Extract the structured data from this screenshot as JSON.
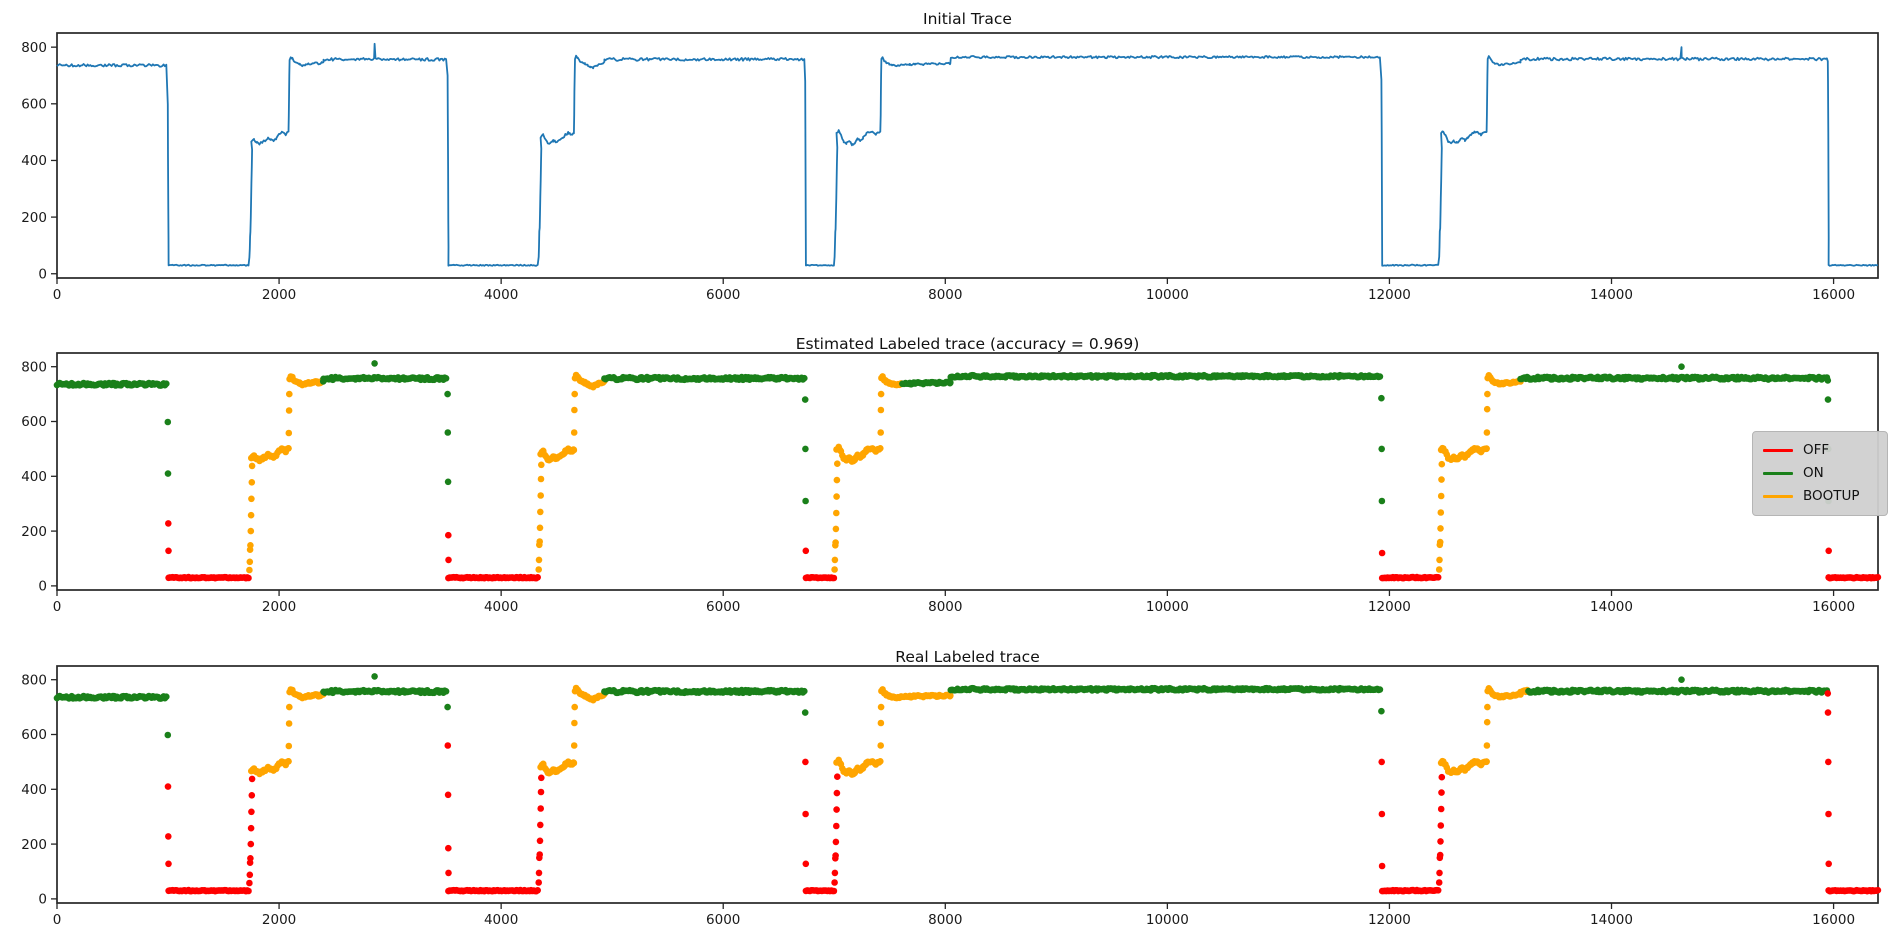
{
  "figure_title": "",
  "legend": {
    "entries": [
      "OFF",
      "ON",
      "BOOTUP"
    ]
  },
  "chart_data": {
    "type": "line",
    "xlim": [
      0,
      16400
    ],
    "ylim": [
      -15,
      850
    ],
    "xticks": [
      0,
      2000,
      4000,
      6000,
      8000,
      10000,
      12000,
      14000,
      16000
    ],
    "yticks": [
      0,
      200,
      400,
      600,
      800
    ],
    "line_color": "#1f77b4",
    "label_colors": {
      "OFF": "#ff0000",
      "ON": "#1a801a",
      "BOOTUP": "#ffa500"
    },
    "panels": [
      {
        "title": "Initial Trace",
        "type": "line"
      },
      {
        "title": "Estimated Labeled trace (accuracy = 0.969)",
        "type": "scatter",
        "labels_key": "est",
        "legend_entries": [
          "OFF",
          "ON",
          "BOOTUP"
        ],
        "legend_position": "center right"
      },
      {
        "title": "Real Labeled trace",
        "type": "scatter",
        "labels_key": "real"
      }
    ],
    "segments": [
      {
        "k": "flat",
        "x0": 0,
        "x1": 995,
        "v": 736,
        "amp": 5,
        "est": "ON",
        "real": "ON"
      },
      {
        "k": "col",
        "x": 998,
        "dx": 2,
        "vals": [
          598,
          410,
          228,
          128
        ],
        "est": [
          "ON",
          "ON",
          "OFF",
          "OFF"
        ],
        "real": [
          "ON",
          "OFF",
          "OFF",
          "OFF"
        ]
      },
      {
        "k": "flat",
        "x0": 1005,
        "x1": 1730,
        "v": 30,
        "amp": 2,
        "est": "OFF",
        "real": "OFF"
      },
      {
        "k": "col",
        "x": 1733,
        "dx": 3,
        "vals": [
          58,
          88,
          132,
          148,
          200,
          258,
          318,
          378,
          438
        ],
        "est": "BOOTUP",
        "real": "OFF"
      },
      {
        "k": "path",
        "pts": [
          [
            1750,
            468
          ],
          [
            1775,
            474
          ],
          [
            1800,
            462
          ],
          [
            1825,
            459
          ],
          [
            1850,
            466
          ],
          [
            1875,
            471
          ],
          [
            1900,
            480
          ],
          [
            1925,
            474
          ],
          [
            1950,
            470
          ],
          [
            1975,
            479
          ],
          [
            2000,
            492
          ],
          [
            2025,
            500
          ],
          [
            2045,
            497
          ],
          [
            2060,
            492
          ],
          [
            2085,
            502
          ]
        ],
        "amp": 4,
        "est": "BOOTUP",
        "real": "BOOTUP"
      },
      {
        "k": "col",
        "x": 2088,
        "dx": 2,
        "vals": [
          558,
          640,
          700
        ],
        "est": "BOOTUP",
        "real": "BOOTUP"
      },
      {
        "k": "path",
        "pts": [
          [
            2095,
            755
          ],
          [
            2105,
            766
          ],
          [
            2120,
            760
          ],
          [
            2140,
            748
          ],
          [
            2160,
            744
          ],
          [
            2185,
            740
          ],
          [
            2210,
            735
          ],
          [
            2240,
            738
          ],
          [
            2270,
            742
          ],
          [
            2300,
            740
          ],
          [
            2330,
            744
          ],
          [
            2360,
            742
          ],
          [
            2385,
            745
          ],
          [
            2400,
            748
          ]
        ],
        "amp": 3,
        "est": [
          [
            "BOOTUP",
            2385
          ],
          [
            "ON",
            2400
          ]
        ],
        "real": "BOOTUP"
      },
      {
        "k": "flat",
        "x0": 2400,
        "x1": 3515,
        "v": 757,
        "amp": 5,
        "spikes": [
          [
            2860,
            812
          ]
        ],
        "est": "ON",
        "real": "ON"
      },
      {
        "k": "col",
        "x": 3518,
        "dx": 2,
        "vals": [
          700,
          560,
          380,
          185,
          95
        ],
        "est": [
          "ON",
          "ON",
          "ON",
          "OFF",
          "OFF"
        ],
        "real": [
          "ON",
          "OFF",
          "OFF",
          "OFF",
          "OFF"
        ]
      },
      {
        "k": "flat",
        "x0": 3525,
        "x1": 4335,
        "v": 30,
        "amp": 2,
        "est": "OFF",
        "real": "OFF"
      },
      {
        "k": "col",
        "x": 4338,
        "dx": 3,
        "vals": [
          60,
          95,
          150,
          162,
          212,
          270,
          330,
          390,
          442
        ],
        "est": "BOOTUP",
        "real": "OFF"
      },
      {
        "k": "path",
        "pts": [
          [
            4355,
            481
          ],
          [
            4380,
            490
          ],
          [
            4400,
            472
          ],
          [
            4420,
            461
          ],
          [
            4445,
            463
          ],
          [
            4470,
            470
          ],
          [
            4490,
            467
          ],
          [
            4510,
            465
          ],
          [
            4530,
            472
          ],
          [
            4555,
            480
          ],
          [
            4580,
            491
          ],
          [
            4605,
            497
          ],
          [
            4625,
            494
          ],
          [
            4640,
            489
          ],
          [
            4655,
            496
          ]
        ],
        "amp": 4,
        "est": "BOOTUP",
        "real": "BOOTUP"
      },
      {
        "k": "col",
        "x": 4658,
        "dx": 2,
        "vals": [
          560,
          642,
          700
        ],
        "est": "BOOTUP",
        "real": "BOOTUP"
      },
      {
        "k": "path",
        "pts": [
          [
            4665,
            760
          ],
          [
            4675,
            769
          ],
          [
            4690,
            762
          ],
          [
            4710,
            750
          ],
          [
            4730,
            745
          ],
          [
            4755,
            741
          ],
          [
            4780,
            737
          ],
          [
            4805,
            730
          ],
          [
            4830,
            728
          ],
          [
            4855,
            733
          ],
          [
            4880,
            739
          ],
          [
            4905,
            743
          ],
          [
            4930,
            748
          ]
        ],
        "amp": 3,
        "est": "BOOTUP",
        "real": "BOOTUP"
      },
      {
        "k": "flat",
        "x0": 4930,
        "x1": 6735,
        "v": 757,
        "amp": 5,
        "est": "ON",
        "real": "ON"
      },
      {
        "k": "col",
        "x": 6738,
        "dx": 2,
        "vals": [
          680,
          500,
          310,
          128
        ],
        "est": [
          "ON",
          "ON",
          "ON",
          "OFF"
        ],
        "real": [
          "ON",
          "OFF",
          "OFF",
          "OFF"
        ]
      },
      {
        "k": "flat",
        "x0": 6745,
        "x1": 7000,
        "v": 30,
        "amp": 2,
        "est": "OFF",
        "real": "OFF"
      },
      {
        "k": "col",
        "x": 7003,
        "dx": 3,
        "vals": [
          60,
          95,
          148,
          158,
          208,
          266,
          326,
          386,
          446
        ],
        "est": "BOOTUP",
        "real": "OFF"
      },
      {
        "k": "path",
        "pts": [
          [
            7020,
            497
          ],
          [
            7040,
            504
          ],
          [
            7060,
            488
          ],
          [
            7085,
            468
          ],
          [
            7110,
            461
          ],
          [
            7135,
            470
          ],
          [
            7160,
            457
          ],
          [
            7185,
            462
          ],
          [
            7210,
            476
          ],
          [
            7235,
            470
          ],
          [
            7260,
            480
          ],
          [
            7290,
            494
          ],
          [
            7320,
            501
          ],
          [
            7350,
            497
          ],
          [
            7380,
            492
          ],
          [
            7415,
            502
          ]
        ],
        "amp": 4,
        "est": "BOOTUP",
        "real": "BOOTUP"
      },
      {
        "k": "col",
        "x": 7418,
        "dx": 2,
        "vals": [
          560,
          642,
          700
        ],
        "est": "BOOTUP",
        "real": "BOOTUP"
      },
      {
        "k": "path",
        "pts": [
          [
            7425,
            756
          ],
          [
            7435,
            763
          ],
          [
            7450,
            752
          ],
          [
            7470,
            745
          ],
          [
            7495,
            741
          ],
          [
            7520,
            737
          ],
          [
            7550,
            734
          ],
          [
            7590,
            737
          ],
          [
            7630,
            740
          ],
          [
            7680,
            738
          ],
          [
            7730,
            741
          ],
          [
            7790,
            739
          ],
          [
            7850,
            742
          ],
          [
            7910,
            740
          ],
          [
            7970,
            742
          ],
          [
            8045,
            742
          ]
        ],
        "amp": 3,
        "est": [
          [
            "BOOTUP",
            7605
          ],
          [
            "ON",
            8045
          ]
        ],
        "real": "BOOTUP"
      },
      {
        "k": "flat",
        "x0": 8050,
        "x1": 11925,
        "v": 765,
        "amp": 4,
        "est": "ON",
        "real": "ON"
      },
      {
        "k": "col",
        "x": 11928,
        "dx": 2,
        "vals": [
          685,
          500,
          310,
          120
        ],
        "est": [
          "ON",
          "ON",
          "ON",
          "OFF"
        ],
        "real": [
          "ON",
          "OFF",
          "OFF",
          "OFF"
        ]
      },
      {
        "k": "flat",
        "x0": 11935,
        "x1": 12445,
        "v": 30,
        "amp": 2,
        "est": "OFF",
        "real": "OFF"
      },
      {
        "k": "col",
        "x": 12448,
        "dx": 3,
        "vals": [
          60,
          95,
          150,
          160,
          210,
          268,
          328,
          388,
          444
        ],
        "est": "BOOTUP",
        "real": "OFF"
      },
      {
        "k": "path",
        "pts": [
          [
            12465,
            497
          ],
          [
            12485,
            503
          ],
          [
            12505,
            487
          ],
          [
            12530,
            467
          ],
          [
            12555,
            460
          ],
          [
            12580,
            468
          ],
          [
            12605,
            463
          ],
          [
            12630,
            470
          ],
          [
            12655,
            477
          ],
          [
            12680,
            472
          ],
          [
            12705,
            481
          ],
          [
            12735,
            493
          ],
          [
            12765,
            501
          ],
          [
            12795,
            497
          ],
          [
            12825,
            492
          ],
          [
            12875,
            501
          ]
        ],
        "amp": 4,
        "est": "BOOTUP",
        "real": "BOOTUP"
      },
      {
        "k": "col",
        "x": 12878,
        "dx": 2,
        "vals": [
          560,
          645,
          700
        ],
        "est": "BOOTUP",
        "real": "BOOTUP"
      },
      {
        "k": "path",
        "pts": [
          [
            12885,
            757
          ],
          [
            12895,
            766
          ],
          [
            12910,
            759
          ],
          [
            12930,
            749
          ],
          [
            12950,
            744
          ],
          [
            12975,
            740
          ],
          [
            13000,
            737
          ],
          [
            13030,
            740
          ],
          [
            13060,
            743
          ],
          [
            13090,
            741
          ],
          [
            13120,
            744
          ],
          [
            13150,
            743
          ],
          [
            13180,
            746
          ]
        ],
        "amp": 3,
        "est": "BOOTUP",
        "real": "BOOTUP"
      },
      {
        "k": "flat",
        "x0": 13180,
        "x1": 15945,
        "v": 758,
        "amp": 5,
        "spikes": [
          [
            14630,
            800
          ]
        ],
        "est": "ON",
        "real": [
          [
            "BOOTUP",
            13250
          ],
          [
            "ON",
            15945
          ]
        ]
      },
      {
        "k": "col",
        "x": 15948,
        "dx": 2,
        "vals": [
          750,
          680,
          500,
          310,
          128
        ],
        "est": [
          "ON",
          "ON",
          "ON",
          "ON",
          "OFF"
        ],
        "real": [
          "OFF",
          "OFF",
          "OFF",
          "OFF",
          "OFF"
        ]
      },
      {
        "k": "flat",
        "x0": 15955,
        "x1": 16400,
        "v": 30,
        "amp": 2,
        "est": "OFF",
        "real": "OFF"
      }
    ]
  }
}
